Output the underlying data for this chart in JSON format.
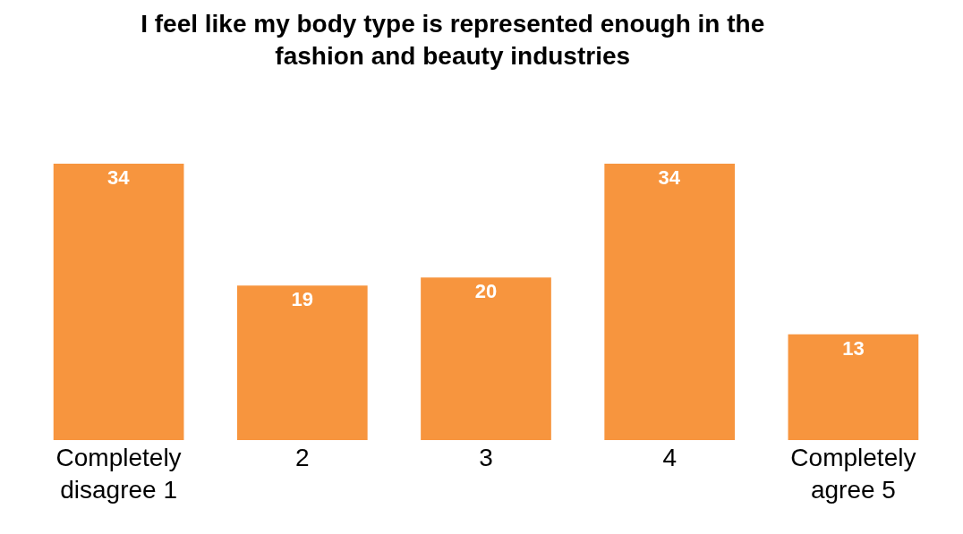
{
  "chart_data": {
    "type": "bar",
    "title": "I feel like my body type is represented enough in the\nfashion and beauty industries",
    "categories": [
      "Completely\ndisagree 1",
      "2",
      "3",
      "4",
      "Completely\nagree 5"
    ],
    "values": [
      34,
      19,
      20,
      34,
      13
    ],
    "color": "#f7953e",
    "data_labels": true
  }
}
